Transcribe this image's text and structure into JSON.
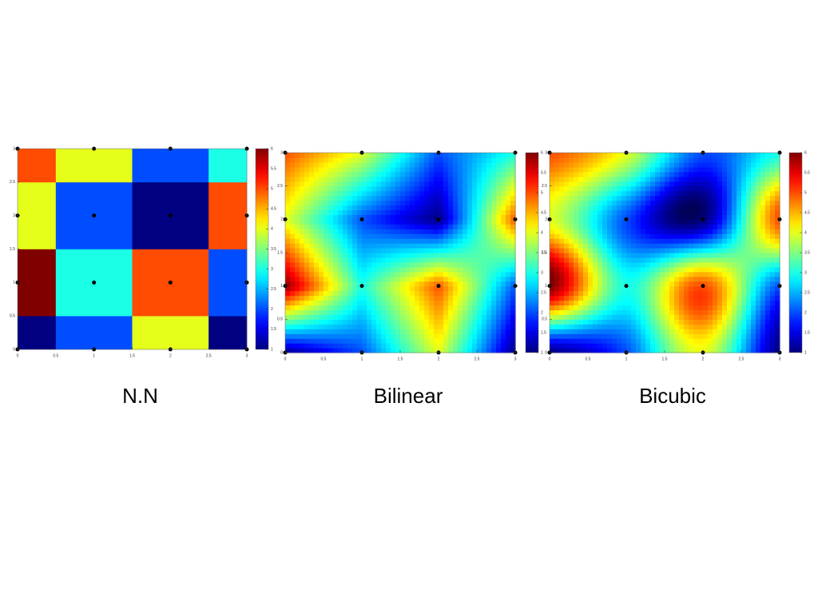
{
  "chart_data": [
    {
      "type": "heatmap",
      "title": "N.N",
      "interpolation": "nearest",
      "colormap": "jet",
      "x": [
        0,
        1,
        2,
        3
      ],
      "y": [
        0,
        1,
        2,
        3
      ],
      "values": [
        [
          1,
          2,
          4,
          1
        ],
        [
          6,
          3,
          5,
          2
        ],
        [
          4,
          2,
          1,
          5
        ],
        [
          5,
          4,
          2,
          3
        ]
      ],
      "xlim": [
        0,
        3
      ],
      "ylim": [
        0,
        3
      ],
      "xticks": [
        0,
        0.5,
        1,
        1.5,
        2,
        2.5,
        3
      ],
      "yticks": [
        0,
        0.5,
        1,
        1.5,
        2,
        2.5,
        3
      ],
      "clim": [
        1,
        6
      ],
      "cticks": [
        1,
        1.5,
        2,
        2.5,
        3,
        3.5,
        4,
        4.5,
        5,
        5.5,
        6
      ]
    },
    {
      "type": "heatmap",
      "title": "Bilinear",
      "interpolation": "bilinear",
      "colormap": "jet",
      "x": [
        0,
        1,
        2,
        3
      ],
      "y": [
        0,
        1,
        2,
        3
      ],
      "values": [
        [
          1,
          2,
          4,
          1
        ],
        [
          6,
          3,
          5,
          2
        ],
        [
          4,
          2,
          1,
          5
        ],
        [
          5,
          4,
          2,
          3
        ]
      ],
      "xlim": [
        0,
        3
      ],
      "ylim": [
        0,
        3
      ],
      "xticks": [
        0,
        0.5,
        1,
        1.5,
        2,
        2.5,
        3
      ],
      "yticks": [
        0,
        0.5,
        1,
        1.5,
        2,
        2.5,
        3
      ],
      "clim": [
        1,
        6
      ],
      "cticks": [
        1,
        1.5,
        2,
        2.5,
        3,
        3.5,
        4,
        4.5,
        5,
        5.5,
        6
      ]
    },
    {
      "type": "heatmap",
      "title": "Bicubic",
      "interpolation": "bicubic",
      "colormap": "jet",
      "x": [
        0,
        1,
        2,
        3
      ],
      "y": [
        0,
        1,
        2,
        3
      ],
      "values": [
        [
          1,
          2,
          4,
          1
        ],
        [
          6,
          3,
          5,
          2
        ],
        [
          4,
          2,
          1,
          5
        ],
        [
          5,
          4,
          2,
          3
        ]
      ],
      "xlim": [
        0,
        3
      ],
      "ylim": [
        0,
        3
      ],
      "xticks": [
        0,
        0.5,
        1,
        1.5,
        2,
        2.5,
        3
      ],
      "yticks": [
        0,
        0.5,
        1,
        1.5,
        2,
        2.5,
        3
      ],
      "clim": [
        1,
        6
      ],
      "cticks": [
        1,
        1.5,
        2,
        2.5,
        3,
        3.5,
        4,
        4.5,
        5,
        5.5,
        6
      ]
    }
  ]
}
